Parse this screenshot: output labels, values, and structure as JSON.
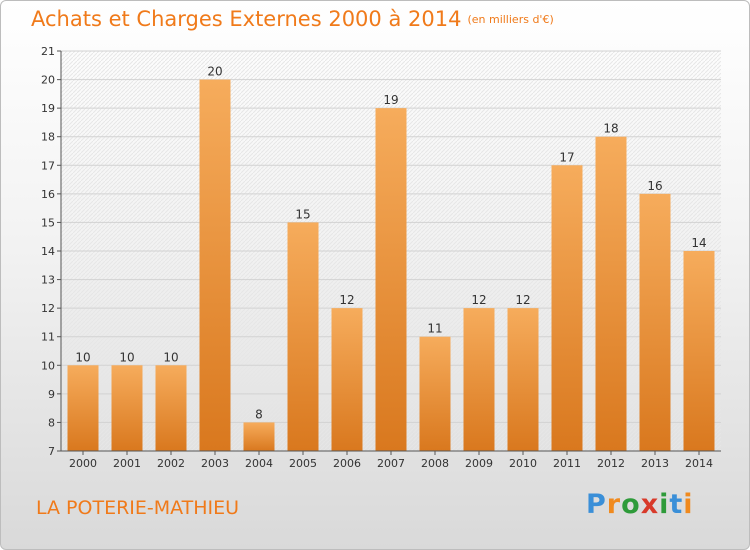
{
  "title": "Achats et Charges Externes 2000 à 2014",
  "unit": "(en milliers d'€)",
  "commune": "LA POTERIE-MATHIEU",
  "logo": {
    "text": "Proxiti",
    "letter_colors": [
      "#3a8fd8",
      "#f08a1e",
      "#2e9b3a",
      "#d83a2a",
      "#2e9b3a",
      "#3a8fd8",
      "#f08a1e"
    ]
  },
  "colors": {
    "bar_top": "#f6ac5c",
    "bar_bottom": "#d9781e",
    "title": "#f07a1a"
  },
  "chart_data": {
    "type": "bar",
    "categories": [
      "2000",
      "2001",
      "2002",
      "2003",
      "2004",
      "2005",
      "2006",
      "2007",
      "2008",
      "2009",
      "2010",
      "2011",
      "2012",
      "2013",
      "2014"
    ],
    "values": [
      10,
      10,
      10,
      20,
      8,
      15,
      12,
      19,
      11,
      12,
      12,
      17,
      18,
      16,
      14
    ],
    "title": "Achats et Charges Externes 2000 à 2014",
    "xlabel": "",
    "ylabel": "",
    "ylim": [
      7,
      21
    ],
    "yticks": [
      7,
      8,
      9,
      10,
      11,
      12,
      13,
      14,
      15,
      16,
      17,
      18,
      19,
      20,
      21
    ],
    "grid": true,
    "data_labels": true
  }
}
